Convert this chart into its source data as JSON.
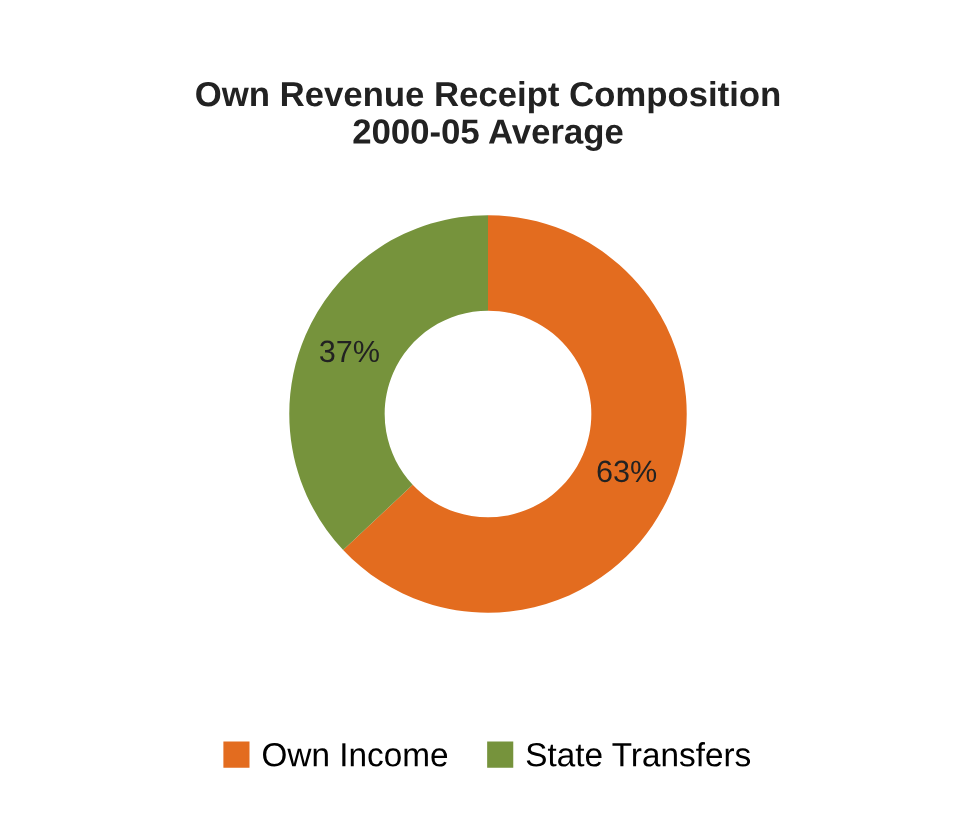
{
  "chart_data": {
    "type": "donut",
    "title": "Own Revenue Receipt Composition\n2000-05 Average",
    "categories": [
      "Own Income",
      "State Transfers"
    ],
    "values": [
      63,
      37
    ],
    "colors": [
      "#e36c1f",
      "#76933c"
    ],
    "value_labels": [
      "63%",
      "37%"
    ],
    "legend": "bottom"
  }
}
